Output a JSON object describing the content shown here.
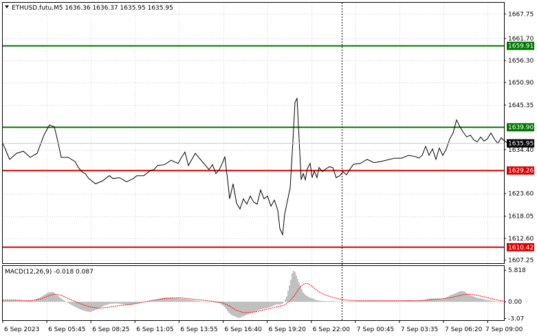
{
  "header": {
    "title": "ETHUSD.futu,M5  1636.36 1636.37 1635.95 1635.95",
    "menu_icon": "triangle-down-icon"
  },
  "macd": {
    "label": "MACD(12,26,9) -0.018 0.087",
    "ticks": [
      "5.818",
      "0.00",
      "-3.07"
    ]
  },
  "colors": {
    "price_line": "#000000",
    "support_level": "#dd0000",
    "resistance_level": "#007700",
    "histogram": "#c0c0c0",
    "signal": "#ff0000",
    "grid": "#d4d4d4"
  },
  "chart_data": [
    {
      "type": "line",
      "name": "price",
      "ylim": [
        1606.5,
        1670.5
      ],
      "yticks": [
        1667.75,
        1661.7,
        1656.3,
        1650.9,
        1645.35,
        1634.4,
        1623.6,
        1618.05,
        1612.6,
        1607.25
      ],
      "ytick_labels": [
        "1667.75",
        "1661.70",
        "1656.30",
        "1650.90",
        "1645.35",
        "1634.40",
        "1623.60",
        "1618.05",
        "1612.60",
        "1607.25"
      ],
      "xlabels": [
        "6 Sep 2023",
        "6 Sep 05:45",
        "6 Sep 08:25",
        "6 Sep 11:05",
        "6 Sep 13:55",
        "6 Sep 16:40",
        "6 Sep 19:20",
        "6 Sep 22:00",
        "7 Sep 00:45",
        "7 Sep 03:35",
        "7 Sep 06:20",
        "7 Sep 09:00"
      ],
      "levels": [
        {
          "value": 1659.91,
          "label": "1659.91",
          "kind": "resistance"
        },
        {
          "value": 1639.9,
          "label": "1639.90",
          "kind": "resistance"
        },
        {
          "value": 1629.26,
          "label": "1629.26",
          "kind": "support"
        },
        {
          "value": 1610.42,
          "label": "1610.42",
          "kind": "support"
        }
      ],
      "current": {
        "value": 1635.95,
        "label": "1635.95"
      },
      "series": [
        {
          "x": [
            0,
            10,
            20,
            30,
            40,
            50,
            60,
            68,
            75,
            80,
            85,
            95,
            105,
            110,
            115,
            120,
            125,
            135,
            145,
            155,
            160,
            170,
            180,
            190,
            195,
            205,
            215,
            220,
            225,
            235,
            245,
            255,
            260,
            265,
            270,
            280,
            290,
            300,
            305,
            310,
            315,
            320,
            323,
            327,
            330,
            335,
            340,
            345,
            350,
            355,
            360,
            365,
            370,
            375,
            380,
            385,
            390,
            395,
            400,
            403,
            407,
            410,
            413,
            418,
            422,
            425,
            428,
            431,
            434,
            437,
            440,
            443,
            447,
            450,
            453,
            457,
            460,
            465,
            470,
            475,
            480,
            485,
            490,
            495,
            500,
            505,
            510,
            520,
            530,
            540,
            550,
            560,
            570,
            580,
            590,
            600,
            605,
            610,
            615,
            620,
            625,
            630,
            635,
            640,
            645,
            650,
            655,
            660,
            665,
            670,
            675,
            680,
            685,
            690,
            695,
            700,
            705,
            710,
            715,
            720,
            725,
            730,
            735
          ],
          "y": [
            1636.0,
            1632.0,
            1633.5,
            1634.0,
            1632.5,
            1633.5,
            1638.0,
            1640.5,
            1640.0,
            1636.5,
            1632.5,
            1632.5,
            1631.5,
            1630.0,
            1629.0,
            1628.5,
            1627.3,
            1626.0,
            1626.7,
            1628.0,
            1627.3,
            1627.5,
            1626.5,
            1627.3,
            1628.0,
            1628.0,
            1629.3,
            1629.5,
            1630.5,
            1630.7,
            1631.8,
            1631.0,
            1632.5,
            1633.8,
            1630.5,
            1633.5,
            1631.5,
            1629.5,
            1630.7,
            1628.5,
            1629.5,
            1631.3,
            1632.7,
            1627.0,
            1622.3,
            1626.0,
            1621.3,
            1619.8,
            1622.3,
            1621.0,
            1623.0,
            1621.5,
            1621.0,
            1624.5,
            1622.3,
            1623.0,
            1620.5,
            1622.0,
            1619.5,
            1615.0,
            1613.5,
            1618.5,
            1621.0,
            1625.0,
            1636.5,
            1646.0,
            1647.0,
            1637.0,
            1627.0,
            1628.5,
            1627.0,
            1629.7,
            1631.0,
            1627.5,
            1629.2,
            1627.5,
            1630.0,
            1629.0,
            1629.7,
            1630.2,
            1630.0,
            1627.5,
            1628.0,
            1629.0,
            1628.2,
            1629.6,
            1630.8,
            1631.0,
            1632.0,
            1631.2,
            1631.5,
            1631.9,
            1632.3,
            1632.3,
            1633.0,
            1632.7,
            1632.3,
            1633.0,
            1635.2,
            1633.0,
            1634.6,
            1632.0,
            1634.8,
            1633.0,
            1634.5,
            1637.0,
            1638.5,
            1641.7,
            1640.0,
            1638.6,
            1637.5,
            1638.0,
            1636.8,
            1636.3,
            1637.5,
            1636.5,
            1637.1,
            1638.5,
            1637.0,
            1635.9,
            1637.3,
            1636.5,
            1635.95
          ]
        }
      ]
    },
    {
      "type": "bar",
      "name": "MACD(12,26,9)",
      "ylim": [
        -3.4,
        6.6
      ],
      "yticks": [
        5.818,
        0.0,
        -3.07
      ],
      "ytick_labels": [
        "5.818",
        "0.00",
        "-3.07"
      ],
      "series": [
        {
          "name": "histogram",
          "x": [
            0,
            15,
            30,
            45,
            55,
            65,
            72,
            78,
            85,
            95,
            105,
            115,
            125,
            135,
            145,
            155,
            165,
            175,
            185,
            195,
            205,
            215,
            225,
            235,
            245,
            255,
            265,
            275,
            285,
            295,
            305,
            315,
            322,
            327,
            332,
            337,
            342,
            347,
            352,
            357,
            362,
            367,
            372,
            377,
            382,
            387,
            392,
            397,
            402,
            407,
            412,
            417,
            421,
            424,
            427,
            430,
            433,
            436,
            440,
            445,
            450,
            455,
            460,
            470,
            480,
            490,
            500,
            510,
            520,
            530,
            540,
            550,
            560,
            570,
            580,
            590,
            600,
            610,
            620,
            630,
            640,
            650,
            655,
            660,
            665,
            670,
            675,
            680,
            685,
            690,
            695,
            700,
            705,
            710,
            715,
            720,
            730
          ],
          "y": [
            0.25,
            0.3,
            0.2,
            0.3,
            0.9,
            1.7,
            1.8,
            1.2,
            0.5,
            -0.3,
            -1.0,
            -1.6,
            -1.9,
            -1.5,
            -0.8,
            -0.4,
            -0.3,
            -0.5,
            -0.6,
            -0.3,
            0.0,
            0.2,
            0.5,
            0.8,
            0.7,
            0.6,
            0.5,
            0.3,
            0.1,
            0.0,
            -0.1,
            -0.3,
            -1.0,
            -1.9,
            -2.5,
            -2.7,
            -3.0,
            -2.8,
            -2.5,
            -2.2,
            -2.0,
            -1.8,
            -1.5,
            -1.3,
            -1.2,
            -1.0,
            -0.8,
            -0.5,
            -0.5,
            -0.3,
            1.0,
            3.5,
            5.8,
            5.5,
            4.5,
            3.5,
            2.6,
            1.7,
            1.2,
            0.8,
            0.6,
            0.3,
            0.2,
            0.1,
            0.1,
            0.0,
            0.1,
            0.1,
            0.2,
            0.2,
            0.2,
            0.2,
            0.2,
            0.2,
            0.2,
            0.3,
            0.2,
            0.3,
            0.6,
            0.6,
            0.5,
            1.2,
            1.4,
            1.7,
            2.0,
            1.9,
            1.5,
            1.2,
            0.9,
            0.7,
            0.6,
            0.4,
            0.3,
            0.2,
            0.1,
            0.05,
            -0.02
          ]
        },
        {
          "name": "signal",
          "x": [
            0,
            20,
            40,
            55,
            65,
            75,
            85,
            95,
            110,
            125,
            140,
            155,
            170,
            185,
            200,
            215,
            230,
            245,
            260,
            275,
            290,
            305,
            320,
            330,
            340,
            350,
            360,
            370,
            380,
            390,
            400,
            410,
            418,
            425,
            430,
            435,
            440,
            445,
            450,
            455,
            460,
            470,
            480,
            490,
            500,
            515,
            530,
            545,
            560,
            575,
            590,
            605,
            620,
            635,
            650,
            660,
            670,
            680,
            690,
            700,
            710,
            720,
            730
          ],
          "y": [
            0.3,
            0.3,
            0.2,
            0.5,
            1.0,
            1.4,
            1.2,
            0.6,
            -0.2,
            -0.9,
            -1.2,
            -1.0,
            -0.7,
            -0.5,
            -0.2,
            0.2,
            0.5,
            0.7,
            0.7,
            0.5,
            0.3,
            0.1,
            -0.2,
            -0.8,
            -1.6,
            -2.0,
            -2.0,
            -1.8,
            -1.5,
            -1.2,
            -0.9,
            -0.6,
            0.2,
            1.3,
            2.3,
            3.0,
            3.4,
            3.3,
            2.8,
            2.3,
            1.8,
            1.2,
            0.8,
            0.5,
            0.3,
            0.2,
            0.2,
            0.2,
            0.2,
            0.2,
            0.2,
            0.2,
            0.3,
            0.5,
            0.7,
            1.0,
            1.3,
            1.4,
            1.2,
            0.9,
            0.6,
            0.3,
            0.087
          ]
        }
      ]
    }
  ]
}
